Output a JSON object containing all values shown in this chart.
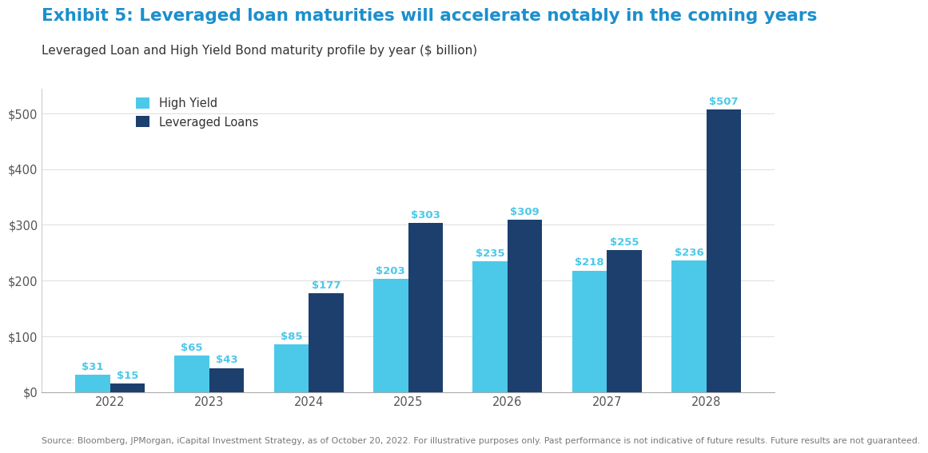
{
  "title": "Exhibit 5: Leveraged loan maturities will accelerate notably in the coming years",
  "subtitle": "Leveraged Loan and High Yield Bond maturity profile by year ($ billion)",
  "footnote": "Source: Bloomberg, JPMorgan, iCapital Investment Strategy, as of October 20, 2022. For illustrative purposes only. Past performance is not indicative of future results. Future results are not guaranteed.",
  "years": [
    2022,
    2023,
    2024,
    2025,
    2026,
    2027,
    2028
  ],
  "high_yield": [
    31,
    65,
    85,
    203,
    235,
    218,
    236
  ],
  "leveraged_loans": [
    15,
    43,
    177,
    303,
    309,
    255,
    507
  ],
  "high_yield_color": "#4CC9E8",
  "leveraged_loans_color": "#1C3F6E",
  "title_color": "#1B8FCC",
  "subtitle_color": "#333333",
  "footnote_color": "#777777",
  "bar_label_color_hy": "#4CC9E8",
  "bar_label_color_ll": "#4CC9E8",
  "background_color": "#FFFFFF",
  "ylim": [
    0,
    545
  ],
  "yticks": [
    0,
    100,
    200,
    300,
    400,
    500
  ],
  "bar_width": 0.35,
  "legend_labels": [
    "High Yield",
    "Leveraged Loans"
  ],
  "title_fontsize": 15.5,
  "subtitle_fontsize": 11,
  "footnote_fontsize": 7.8,
  "label_fontsize": 9.5,
  "tick_fontsize": 10.5,
  "legend_fontsize": 10.5
}
